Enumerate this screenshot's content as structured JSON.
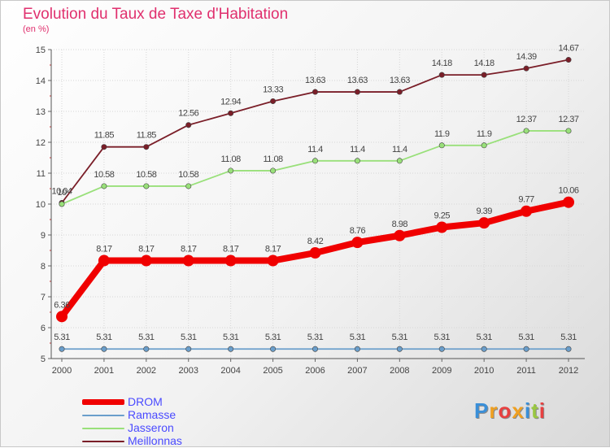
{
  "header": {
    "title": "Evolution du Taux de Taxe d'Habitation",
    "subtitle": "(en %)"
  },
  "chart_data": {
    "type": "line",
    "title": "Evolution du Taux de Taxe d'Habitation",
    "ylabel": "(en %)",
    "xlabel": "",
    "x": [
      "2000",
      "2001",
      "2002",
      "2003",
      "2004",
      "2005",
      "2006",
      "2007",
      "2008",
      "2009",
      "2010",
      "2011",
      "2012"
    ],
    "ylim": [
      5,
      15
    ],
    "yticks": [
      "5",
      "6",
      "7",
      "8",
      "9",
      "10",
      "11",
      "12",
      "13",
      "14",
      "15"
    ],
    "grid": true,
    "legend_position": "bottom-left",
    "series": [
      {
        "name": "Meillonnas",
        "color": "#7a1e28",
        "values": [
          10.04,
          11.85,
          11.85,
          12.56,
          12.94,
          13.33,
          13.63,
          13.63,
          13.63,
          14.18,
          14.18,
          14.39,
          14.67
        ],
        "labels": [
          "10.04",
          "11.85",
          "11.85",
          "12.56",
          "12.94",
          "13.33",
          "13.63",
          "13.63",
          "13.63",
          "14.18",
          "14.18",
          "14.39",
          "14.67"
        ]
      },
      {
        "name": "Jasseron",
        "color": "#99e07a",
        "values": [
          10.0,
          10.58,
          10.58,
          10.58,
          11.08,
          11.08,
          11.4,
          11.4,
          11.4,
          11.9,
          11.9,
          12.37,
          12.37
        ],
        "labels": [
          "10",
          "10.58",
          "10.58",
          "10.58",
          "11.08",
          "11.08",
          "11.4",
          "11.4",
          "11.4",
          "11.9",
          "11.9",
          "12.37",
          "12.37"
        ]
      },
      {
        "name": "Ramasse",
        "color": "#6a9ecb",
        "values": [
          5.31,
          5.31,
          5.31,
          5.31,
          5.31,
          5.31,
          5.31,
          5.31,
          5.31,
          5.31,
          5.31,
          5.31,
          5.31
        ],
        "labels": [
          "5.31",
          "5.31",
          "5.31",
          "5.31",
          "5.31",
          "5.31",
          "5.31",
          "5.31",
          "5.31",
          "5.31",
          "5.31",
          "5.31",
          "5.31"
        ]
      },
      {
        "name": "DROM",
        "color": "#f00000",
        "values": [
          6.36,
          8.17,
          8.17,
          8.17,
          8.17,
          8.17,
          8.42,
          8.76,
          8.98,
          9.25,
          9.39,
          9.77,
          10.06
        ],
        "labels": [
          "6.36",
          "8.17",
          "8.17",
          "8.17",
          "8.17",
          "8.17",
          "8.42",
          "8.76",
          "8.98",
          "9.25",
          "9.39",
          "9.77",
          "10.06"
        ]
      }
    ]
  },
  "legend": {
    "items": [
      {
        "label": "DROM",
        "color": "#f00000",
        "text_color": "#4a4aff"
      },
      {
        "label": "Ramasse",
        "color": "#6a9ecb",
        "text_color": "#4a4aff"
      },
      {
        "label": "Jasseron",
        "color": "#99e07a",
        "text_color": "#4a4aff"
      },
      {
        "label": "Meillonnas",
        "color": "#7a1e28",
        "text_color": "#4a4aff"
      }
    ]
  },
  "brand": {
    "letters": [
      {
        "ch": "P",
        "color": "#3a8fd8"
      },
      {
        "ch": "r",
        "color": "#f0a020"
      },
      {
        "ch": "o",
        "color": "#e84040"
      },
      {
        "ch": "x",
        "color": "#f0a020"
      },
      {
        "ch": "i",
        "color": "#3a8fd8"
      },
      {
        "ch": "t",
        "color": "#9ac840"
      },
      {
        "ch": "i",
        "color": "#e84040"
      }
    ]
  }
}
